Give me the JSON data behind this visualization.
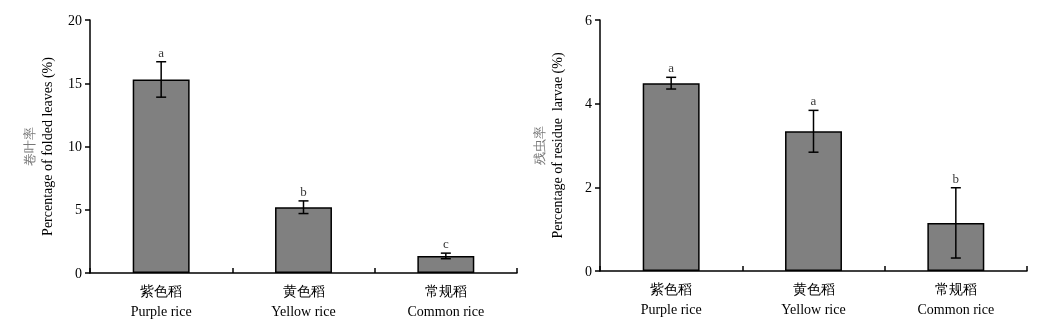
{
  "chart_data": [
    {
      "type": "bar",
      "ylabel": "卷叶率\nPercentage of folded leaves (%)",
      "categories": [
        "紫色稻\nPurple rice",
        "黄色稻\nYellow rice",
        "常规稻\nCommon rice"
      ],
      "values": [
        15.3,
        5.2,
        1.35
      ],
      "errors": [
        1.4,
        0.5,
        0.22
      ],
      "color": "#808080",
      "ylim": [
        0,
        20
      ],
      "yticks": [
        0,
        5,
        10,
        15,
        20
      ],
      "grid": false,
      "annotations": [
        {
          "text": "a",
          "x": "紫色稻\nPurple rice",
          "y": 16.7
        },
        {
          "text": "b",
          "x": "黄色稻\nYellow rice",
          "y": 5.7
        },
        {
          "text": "c",
          "x": "常规稻\nCommon rice",
          "y": 1.57
        }
      ]
    },
    {
      "type": "bar",
      "ylabel": "残虫率\nPercentage of residue  larvae (%)",
      "categories": [
        "紫色稻\nPurple rice",
        "黄色稻\nYellow rice",
        "常规稻\nCommon rice"
      ],
      "values": [
        4.49,
        3.34,
        1.15
      ],
      "errors": [
        0.14,
        0.5,
        0.84
      ],
      "color": "#808080",
      "ylim": [
        0,
        6
      ],
      "yticks": [
        0,
        2,
        4,
        6
      ],
      "grid": false,
      "annotations": [
        {
          "text": "a",
          "x": "紫色稻\nPurple rice",
          "y": 4.63
        },
        {
          "text": "a",
          "x": "黄色稻\nYellow rice",
          "y": 3.84
        },
        {
          "text": "b",
          "x": "常规稻\nCommon rice",
          "y": 1.99
        }
      ]
    }
  ]
}
